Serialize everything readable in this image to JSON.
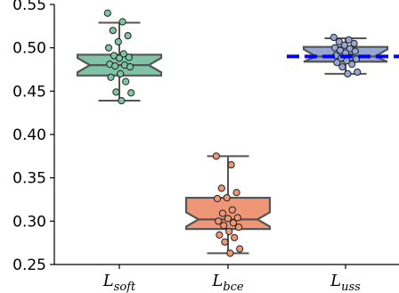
{
  "chart_data": {
    "type": "box",
    "title": "",
    "xlabel": "",
    "ylabel": "",
    "ylim": [
      0.25,
      0.55
    ],
    "yticks": [
      0.25,
      0.3,
      0.35,
      0.4,
      0.45,
      0.5,
      0.55
    ],
    "ytick_labels": [
      "0.25",
      "0.30",
      "0.35",
      "0.40",
      "0.45",
      "0.50",
      "0.55"
    ],
    "notched": true,
    "grid": false,
    "categories": [
      {
        "label_main": "L",
        "label_sub": "soft"
      },
      {
        "label_main": "L",
        "label_sub": "bce"
      },
      {
        "label_main": "L",
        "label_sub": "uss"
      }
    ],
    "boxes": [
      {
        "q1": 0.468,
        "median": 0.48,
        "q3": 0.492,
        "whisker_low": 0.439,
        "whisker_high": 0.529,
        "color": "#7fc4a6",
        "points": [
          0.54,
          0.53,
          0.52,
          0.514,
          0.507,
          0.5,
          0.493,
          0.491,
          0.489,
          0.488,
          0.481,
          0.48,
          0.479,
          0.478,
          0.47,
          0.466,
          0.461,
          0.449,
          0.448,
          0.439
        ]
      },
      {
        "q1": 0.291,
        "median": 0.302,
        "q3": 0.327,
        "whisker_low": 0.263,
        "whisker_high": 0.375,
        "color": "#ee9675",
        "points": [
          0.375,
          0.365,
          0.338,
          0.333,
          0.327,
          0.326,
          0.313,
          0.309,
          0.304,
          0.303,
          0.3,
          0.298,
          0.295,
          0.293,
          0.288,
          0.284,
          0.281,
          0.276,
          0.268,
          0.263
        ]
      },
      {
        "q1": 0.484,
        "median": 0.49,
        "q3": 0.501,
        "whisker_low": 0.47,
        "whisker_high": 0.511,
        "color": "#95a6d2",
        "points": [
          0.512,
          0.509,
          0.507,
          0.505,
          0.503,
          0.5,
          0.499,
          0.497,
          0.496,
          0.494,
          0.491,
          0.489,
          0.488,
          0.487,
          0.485,
          0.483,
          0.481,
          0.478,
          0.472,
          0.47
        ]
      }
    ],
    "reference_line": {
      "y": 0.49,
      "color": "#0000ff",
      "style": "dashed"
    },
    "edge_color": "#555555"
  }
}
